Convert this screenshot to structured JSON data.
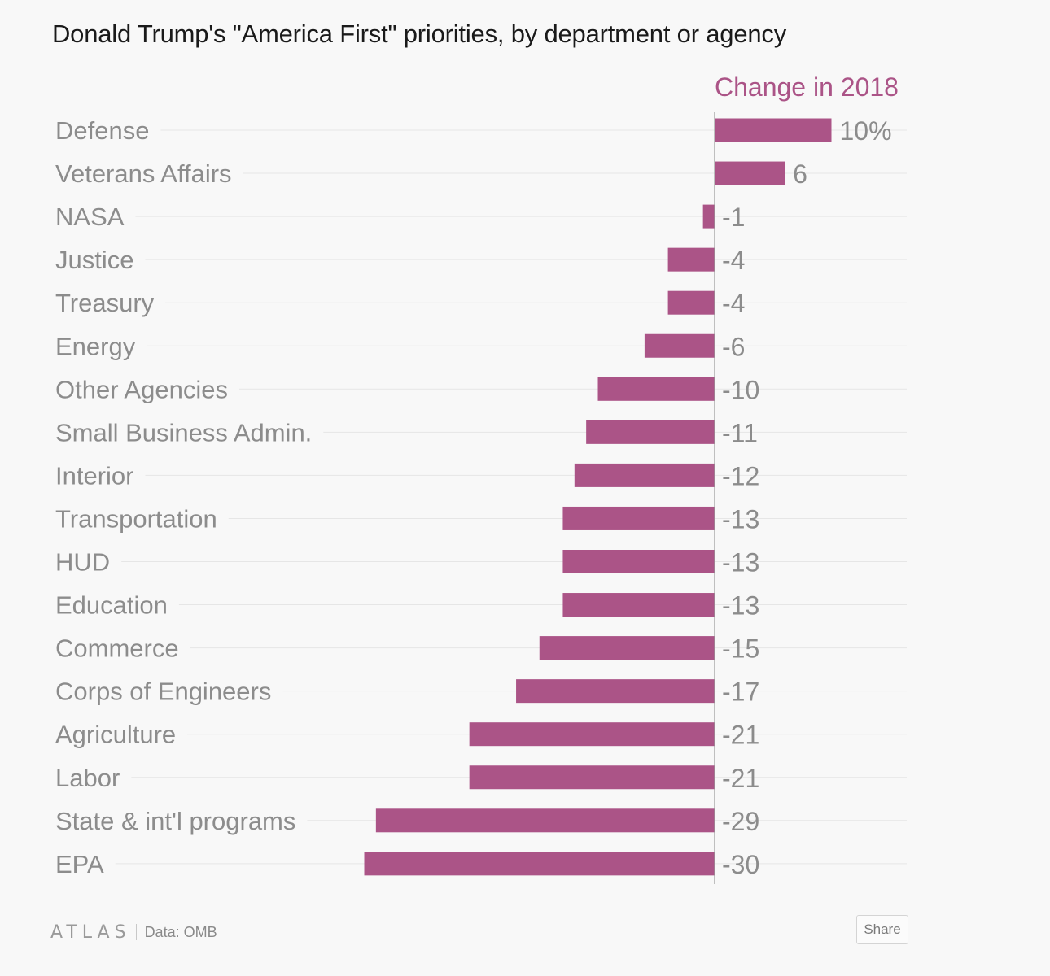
{
  "header": {
    "title": "Donald Trump's \"America First\" priorities, by department or agency"
  },
  "chart_data": {
    "type": "bar",
    "orientation": "horizontal",
    "title": "Donald Trump's \"America First\" priorities, by department or agency",
    "series": [
      {
        "name": "Change in 2018",
        "values": [
          10,
          6,
          -1,
          -4,
          -4,
          -6,
          -10,
          -11,
          -12,
          -13,
          -13,
          -13,
          -15,
          -17,
          -21,
          -21,
          -29,
          -30
        ]
      }
    ],
    "categories": [
      "Defense",
      "Veterans Affairs",
      "NASA",
      "Justice",
      "Treasury",
      "Energy",
      "Other Agencies",
      "Small Business Admin.",
      "Interior",
      "Transportation",
      "HUD",
      "Education",
      "Commerce",
      "Corps of Engineers",
      "Agriculture",
      "Labor",
      "State & int'l programs",
      "EPA"
    ],
    "data_labels": [
      "10%",
      "6",
      "-1",
      "-4",
      "-4",
      "-6",
      "-10",
      "-11",
      "-12",
      "-13",
      "-13",
      "-13",
      "-15",
      "-17",
      "-21",
      "-21",
      "-29",
      "-30"
    ],
    "xlim": [
      -30,
      10
    ],
    "unit": "%",
    "bar_color": "#ab5487",
    "grid": true,
    "legend": "none"
  },
  "footer": {
    "brand": "ATLAS",
    "source": "Data: OMB",
    "share_label": "Share"
  }
}
